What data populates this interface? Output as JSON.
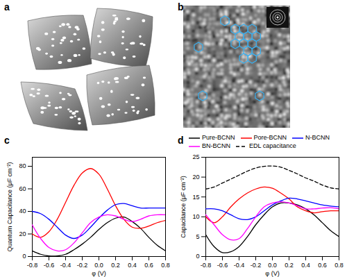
{
  "figure": {
    "panel_labels": [
      "a",
      "b"
    ]
  },
  "chart_data": [
    {
      "type": "line",
      "title": "c",
      "x_label": "φ (V)",
      "y_label": "Quantum Capacitance (μF cm⁻²)",
      "x": [
        -0.8,
        -0.7,
        -0.6,
        -0.5,
        -0.4,
        -0.3,
        -0.2,
        -0.1,
        0,
        0.1,
        0.2,
        0.3,
        0.4,
        0.5,
        0.6,
        0.7,
        0.8
      ],
      "xlim": [
        -0.8,
        0.8
      ],
      "xticks": [
        -0.8,
        -0.6,
        -0.4,
        -0.2,
        {
          "value": 0,
          "label": "0.0"
        },
        0.2,
        0.4,
        0.6,
        0.8
      ],
      "ylim": [
        0,
        88
      ],
      "yticks": [
        0,
        20,
        40,
        60,
        80
      ],
      "series": [
        {
          "name": "Pure-BCNN",
          "color": "#000000",
          "line_style": "solid",
          "values": [
            5,
            2,
            0.5,
            0.5,
            2,
            6,
            11,
            17,
            24,
            30,
            34,
            35,
            31,
            25,
            17,
            10,
            5
          ]
        },
        {
          "name": "Pore-BCNN",
          "color": "#ff0000",
          "line_style": "solid",
          "values": [
            20,
            17,
            22,
            33,
            48,
            63,
            74,
            78,
            73,
            60,
            45,
            33,
            26,
            25,
            27,
            30,
            32
          ]
        },
        {
          "name": "N-BCNN",
          "color": "#0000ff",
          "line_style": "solid",
          "values": [
            40,
            38,
            33,
            26,
            19,
            16,
            19,
            26,
            34,
            41,
            46,
            47,
            45,
            43,
            43,
            43,
            43
          ]
        },
        {
          "name": "BN-BCNN",
          "color": "#ff00ff",
          "line_style": "solid",
          "values": [
            28,
            16,
            8,
            5,
            6,
            12,
            21,
            30,
            35,
            37,
            36,
            33,
            31,
            33,
            36,
            37,
            37
          ]
        }
      ]
    },
    {
      "type": "line",
      "title": "d",
      "legend": "top",
      "x_label": "φ (V)",
      "y_label": "Capacitance (μF cm⁻²)",
      "x": [
        -0.8,
        -0.7,
        -0.6,
        -0.5,
        -0.4,
        -0.3,
        -0.2,
        -0.1,
        0,
        0.1,
        0.2,
        0.3,
        0.4,
        0.5,
        0.6,
        0.7,
        0.8
      ],
      "xlim": [
        -0.8,
        0.8
      ],
      "xticks": [
        -0.8,
        -0.6,
        -0.4,
        -0.2,
        {
          "value": 0,
          "label": "0.0"
        },
        0.2,
        0.4,
        0.6,
        0.8
      ],
      "ylim": [
        0,
        25
      ],
      "yticks": [
        0,
        5,
        10,
        15,
        20,
        25
      ],
      "series": [
        {
          "name": "Pure-BCNN",
          "color": "#000000",
          "line_style": "solid",
          "values": [
            5.5,
            2.5,
            1,
            1.2,
            2.5,
            5,
            8,
            10.5,
            12.5,
            13.5,
            13.5,
            13,
            12,
            10.5,
            8.5,
            6.5,
            5
          ]
        },
        {
          "name": "Pore-BCNN",
          "color": "#ff0000",
          "line_style": "solid",
          "values": [
            10,
            8.5,
            10,
            12.5,
            14.5,
            16,
            17,
            17.5,
            17.2,
            16,
            14.5,
            12.5,
            11.5,
            11,
            11.3,
            11.5,
            11.5
          ]
        },
        {
          "name": "N-BCNN",
          "color": "#0000ff",
          "line_style": "solid",
          "values": [
            12,
            12,
            11.5,
            10.5,
            9.5,
            9.3,
            10,
            11.5,
            13,
            14,
            14.7,
            14.5,
            14,
            13.5,
            13,
            12.7,
            12.5
          ]
        },
        {
          "name": "BN-BCNN",
          "color": "#ff00ff",
          "line_style": "solid",
          "values": [
            10.5,
            8,
            5.5,
            4.2,
            4.5,
            7,
            10,
            12.5,
            13.5,
            13.8,
            13.5,
            12.8,
            12,
            12,
            12.2,
            12.3,
            12
          ]
        },
        {
          "name": "EDL capacitance",
          "color": "#000000",
          "line_style": "dashed",
          "values": [
            17,
            17.5,
            18.5,
            19.5,
            20.5,
            21.5,
            22.3,
            22.7,
            22.8,
            22.5,
            21.7,
            20.8,
            19.8,
            19,
            18,
            17.3,
            17
          ]
        }
      ]
    }
  ]
}
